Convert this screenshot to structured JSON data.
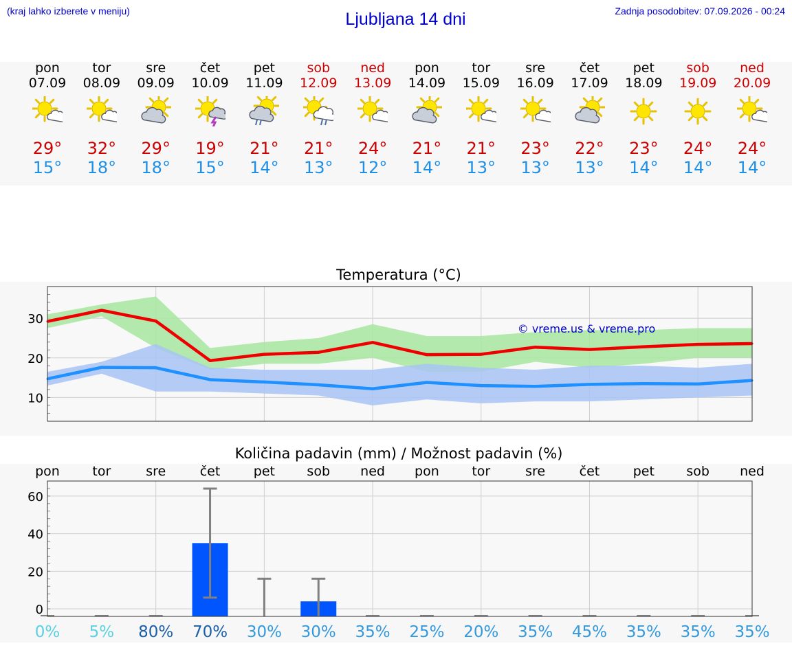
{
  "header": {
    "location_hint": "(kraj lahko izberete v meniju)",
    "title": "Ljubljana 14 dni",
    "updated": "Zadnja posodobitev: 07.09.2026 - 00:24"
  },
  "days": [
    {
      "name": "pon",
      "date": "07.09",
      "weekend": false,
      "icon": "sun-cloud-icon",
      "max": "29°",
      "min": "15°"
    },
    {
      "name": "tor",
      "date": "08.09",
      "weekend": false,
      "icon": "sun-cloud-icon",
      "max": "32°",
      "min": "18°"
    },
    {
      "name": "sre",
      "date": "09.09",
      "weekend": false,
      "icon": "cloud-sun-icon",
      "max": "29°",
      "min": "18°"
    },
    {
      "name": "čet",
      "date": "10.09",
      "weekend": false,
      "icon": "sun-thunderstorm-icon",
      "max": "19°",
      "min": "15°"
    },
    {
      "name": "pet",
      "date": "11.09",
      "weekend": false,
      "icon": "cloud-sun-rain-icon",
      "max": "21°",
      "min": "14°"
    },
    {
      "name": "sob",
      "date": "12.09",
      "weekend": true,
      "icon": "sun-rain-cloud-icon",
      "max": "21°",
      "min": "13°"
    },
    {
      "name": "ned",
      "date": "13.09",
      "weekend": true,
      "icon": "sun-cloud-icon",
      "max": "24°",
      "min": "12°"
    },
    {
      "name": "pon",
      "date": "14.09",
      "weekend": false,
      "icon": "cloud-sun-icon",
      "max": "21°",
      "min": "14°"
    },
    {
      "name": "tor",
      "date": "15.09",
      "weekend": false,
      "icon": "sun-cloud-icon",
      "max": "21°",
      "min": "13°"
    },
    {
      "name": "sre",
      "date": "16.09",
      "weekend": false,
      "icon": "sun-cloud-icon",
      "max": "23°",
      "min": "13°"
    },
    {
      "name": "čet",
      "date": "17.09",
      "weekend": false,
      "icon": "cloud-sun-icon",
      "max": "22°",
      "min": "13°"
    },
    {
      "name": "pet",
      "date": "18.09",
      "weekend": false,
      "icon": "sun-icon",
      "max": "23°",
      "min": "14°"
    },
    {
      "name": "sob",
      "date": "19.09",
      "weekend": true,
      "icon": "sun-icon",
      "max": "24°",
      "min": "14°"
    },
    {
      "name": "ned",
      "date": "20.09",
      "weekend": true,
      "icon": "sun-cloud-icon",
      "max": "24°",
      "min": "14°"
    }
  ],
  "colors": {
    "max_line": "#ee0000",
    "min_line": "#1e90ff",
    "max_band": "#a8e6a0",
    "min_band": "#a8c4f5",
    "bar": "#0055ff",
    "whisker": "#808080",
    "weekend": "#cc0000",
    "link": "#0000cc"
  },
  "chart_data": [
    {
      "type": "line",
      "title": "Temperatura (°C)",
      "watermark": "© vreme.us & vreme.pro",
      "x": [
        "07.09",
        "08.09",
        "09.09",
        "10.09",
        "11.09",
        "12.09",
        "13.09",
        "14.09",
        "15.09",
        "16.09",
        "17.09",
        "18.09",
        "19.09",
        "20.09"
      ],
      "ylim": [
        4,
        38
      ],
      "yticks": [
        10,
        20,
        30
      ],
      "grid": true,
      "series": [
        {
          "role": "max",
          "values": [
            29.2,
            32.0,
            29.3,
            19.3,
            20.9,
            21.4,
            23.9,
            20.8,
            20.9,
            22.7,
            22.1,
            22.8,
            23.4,
            23.6
          ],
          "band_low": [
            27.5,
            30.5,
            22.5,
            17.0,
            18.5,
            18.5,
            20.0,
            16.5,
            16.5,
            19.0,
            17.5,
            18.5,
            20.0,
            20.0
          ],
          "band_high": [
            31.0,
            33.5,
            35.5,
            22.5,
            24.0,
            25.0,
            28.5,
            25.5,
            25.5,
            26.5,
            27.0,
            27.0,
            27.5,
            27.5
          ]
        },
        {
          "role": "min",
          "values": [
            14.7,
            17.6,
            17.5,
            14.5,
            13.9,
            13.2,
            12.2,
            13.8,
            13.0,
            12.8,
            13.3,
            13.5,
            13.4,
            14.3
          ],
          "band_low": [
            13.0,
            16.0,
            11.5,
            11.5,
            11.0,
            10.5,
            8.0,
            9.5,
            8.5,
            9.0,
            9.0,
            9.5,
            10.0,
            10.5
          ],
          "band_high": [
            16.5,
            19.0,
            23.5,
            17.5,
            17.0,
            17.0,
            17.0,
            18.5,
            17.5,
            17.0,
            18.0,
            18.0,
            17.5,
            18.5
          ]
        }
      ]
    },
    {
      "type": "bar",
      "title": "Količina padavin (mm) / Možnost padavin (%)",
      "categories": [
        "pon",
        "tor",
        "sre",
        "čet",
        "pet",
        "sob",
        "ned",
        "pon",
        "tor",
        "sre",
        "čet",
        "pet",
        "sob",
        "ned"
      ],
      "values": [
        0,
        0,
        0,
        35,
        0,
        4,
        0,
        0,
        0,
        0,
        0,
        0,
        0,
        0
      ],
      "error_low": [
        0,
        0,
        0,
        6,
        0,
        0,
        0,
        0,
        0,
        0,
        0,
        0,
        0,
        0
      ],
      "error_high": [
        0,
        0,
        0,
        64,
        16,
        16,
        0,
        0,
        0,
        0,
        0,
        0,
        0,
        0
      ],
      "probability": [
        "0%",
        "5%",
        "80%",
        "70%",
        "30%",
        "30%",
        "35%",
        "25%",
        "20%",
        "35%",
        "45%",
        "35%",
        "35%",
        "35%"
      ],
      "probability_colors": [
        "#5ad0e0",
        "#5ad0e0",
        "#1a5fa8",
        "#1a5fa8",
        "#3399dd",
        "#3399dd",
        "#3399dd",
        "#3399dd",
        "#3399dd",
        "#3399dd",
        "#3399dd",
        "#3399dd",
        "#3399dd",
        "#3399dd"
      ],
      "ylim": [
        -4,
        68
      ],
      "yticks": [
        0,
        20,
        40,
        60
      ],
      "grid": true
    }
  ]
}
